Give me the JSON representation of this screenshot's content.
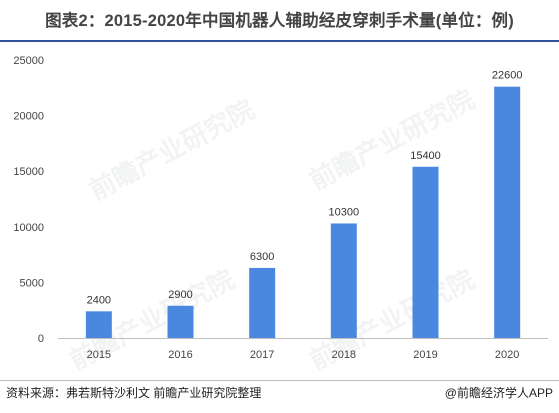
{
  "chart_data": {
    "type": "bar",
    "title": "图表2：2015-2020年中国机器人辅助经皮穿刺手术量(单位：例)",
    "categories": [
      "2015",
      "2016",
      "2017",
      "2018",
      "2019",
      "2020"
    ],
    "values": [
      2400,
      2900,
      6300,
      10300,
      15400,
      22600
    ],
    "data_labels": [
      "2400",
      "2900",
      "6300",
      "10300",
      "15400",
      "22600"
    ],
    "yticks": [
      0,
      5000,
      10000,
      15000,
      20000,
      25000
    ],
    "ylim": [
      0,
      25000
    ],
    "xlabel": "",
    "ylabel": "",
    "grid": false,
    "bar_color": "#4a88e0"
  },
  "footer": {
    "source": "资料来源：弗若斯特沙利文 前瞻产业研究院整理",
    "brand": "@前瞻经济学人APP"
  },
  "watermark": {
    "text": "前瞻产业研究院"
  }
}
